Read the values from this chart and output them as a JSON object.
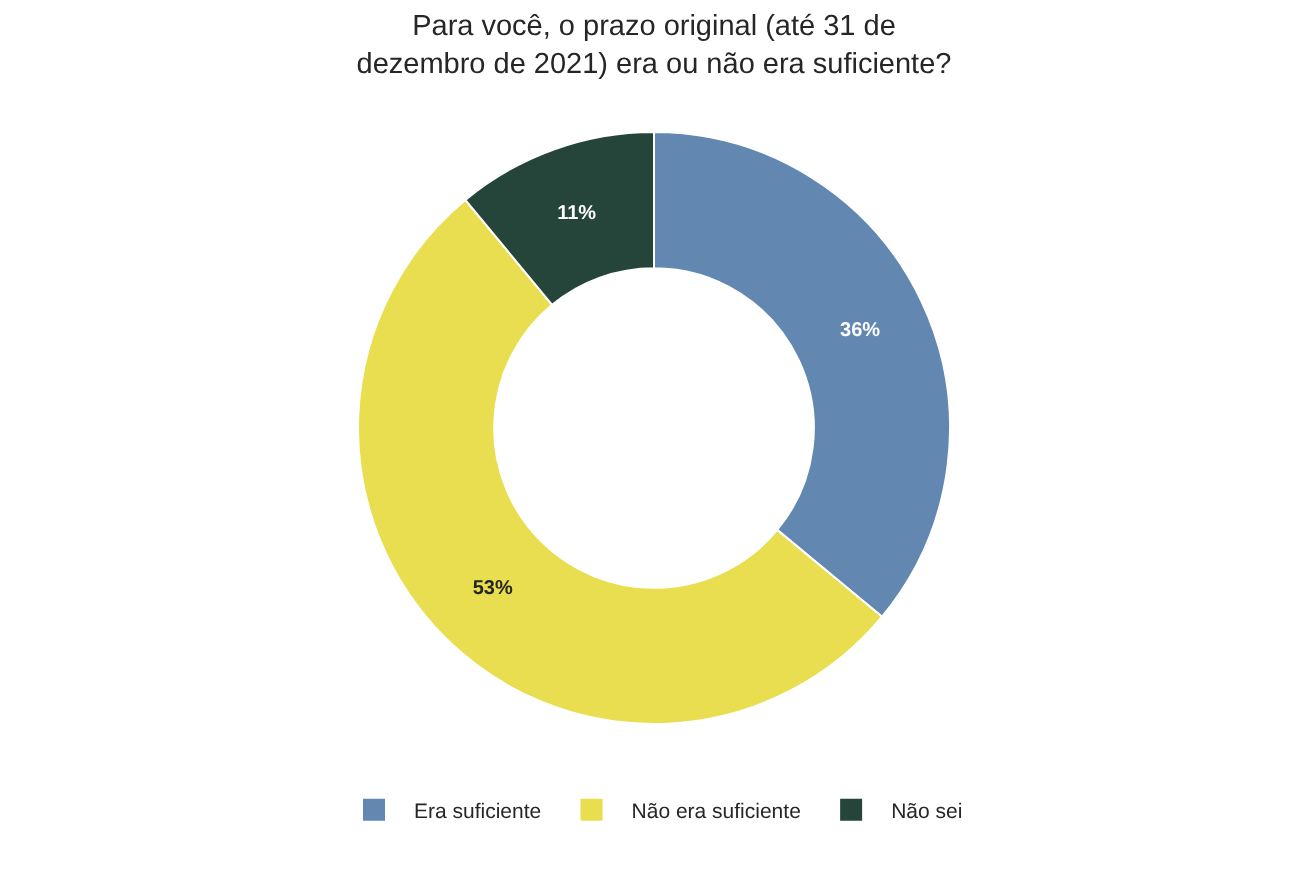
{
  "chart_data": {
    "type": "donut",
    "title": "Para você, o prazo original (até 31 de dezembro de 2021) era ou não era suficiente?",
    "categories": [
      "Era suficiente",
      "Não era suficiente",
      "Não sei"
    ],
    "values": [
      36,
      53,
      11
    ],
    "value_labels": [
      "36%",
      "53%",
      "11%"
    ],
    "colors": [
      "#6287b1",
      "#e9de4f",
      "#26453a"
    ],
    "legend": "bottom"
  }
}
